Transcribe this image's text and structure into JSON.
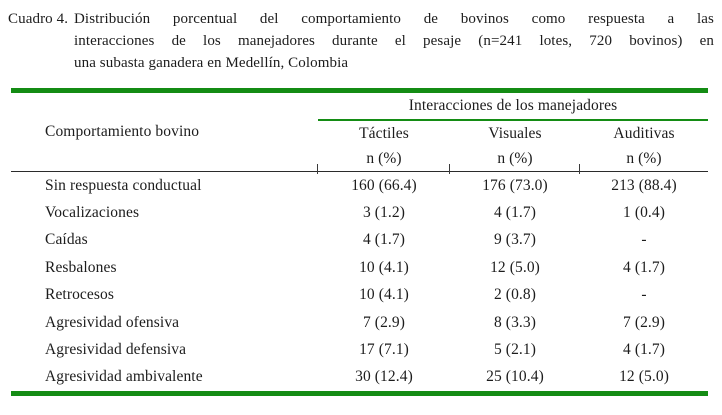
{
  "document": {
    "caption": {
      "label": "Cuadro 4.",
      "lines": [
        "Distribución porcentual del comportamiento de bovinos como respuesta a las",
        "interacciones de los manejadores durante el pesaje (n=241 lotes, 720 bovinos) en",
        "una subasta ganadera en Medellín, Colombia"
      ]
    }
  },
  "table": {
    "row_header": "Comportamiento bovino",
    "group_header": "Interacciones de los manejadores",
    "columns": [
      {
        "label": "Táctiles",
        "sub": "n (%)"
      },
      {
        "label": "Visuales",
        "sub": "n (%)"
      },
      {
        "label": "Auditivas",
        "sub": "n (%)"
      }
    ],
    "rows": [
      {
        "behavior": "Sin respuesta conductual",
        "tactiles": "160 (66.4)",
        "visuales": "176 (73.0)",
        "auditivas": "213 (88.4)"
      },
      {
        "behavior": "Vocalizaciones",
        "tactiles": "3 (1.2)",
        "visuales": "4 (1.7)",
        "auditivas": "1 (0.4)"
      },
      {
        "behavior": "Caídas",
        "tactiles": "4 (1.7)",
        "visuales": "9 (3.7)",
        "auditivas": "-"
      },
      {
        "behavior": "Resbalones",
        "tactiles": "10 (4.1)",
        "visuales": "12 (5.0)",
        "auditivas": "4 (1.7)"
      },
      {
        "behavior": "Retrocesos",
        "tactiles": "10 (4.1)",
        "visuales": "2 (0.8)",
        "auditivas": "-"
      },
      {
        "behavior": "Agresividad ofensiva",
        "tactiles": "7 (2.9)",
        "visuales": "8 (3.3)",
        "auditivas": "7 (2.9)"
      },
      {
        "behavior": "Agresividad defensiva",
        "tactiles": "17 (7.1)",
        "visuales": "5 (2.1)",
        "auditivas": "4 (1.7)"
      },
      {
        "behavior": "Agresividad ambivalente",
        "tactiles": "30 (12.4)",
        "visuales": "25 (10.4)",
        "auditivas": "12 (5.0)"
      }
    ]
  },
  "colors": {
    "rule_green": "#148c14",
    "rule_black": "#2b2b2b",
    "text": "#1c1c1c",
    "background": "#ffffff"
  }
}
